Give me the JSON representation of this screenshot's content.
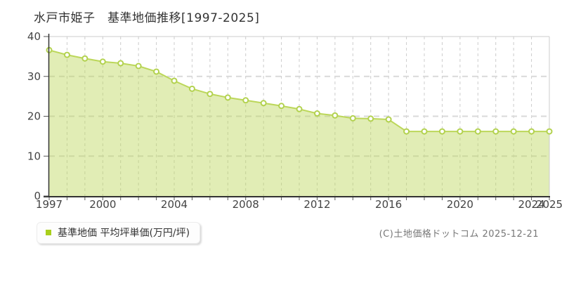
{
  "title": "水戸市姫子　基準地価推移[1997-2025]",
  "legend": {
    "label": "基準地価 平均坪単価(万円/坪)"
  },
  "copyright": "(C)土地価格ドットコム 2025-12-21",
  "chart_data": {
    "type": "area",
    "title": "水戸市姫子　基準地価推移[1997-2025]",
    "series_name": "基準地価 平均坪単価(万円/坪)",
    "ylabel": "万円/坪",
    "x": [
      1997,
      1998,
      1999,
      2000,
      2001,
      2002,
      2003,
      2004,
      2005,
      2006,
      2007,
      2008,
      2009,
      2010,
      2011,
      2012,
      2013,
      2014,
      2015,
      2016,
      2017,
      2018,
      2019,
      2020,
      2021,
      2022,
      2023,
      2024,
      2025
    ],
    "values": [
      36.6,
      35.4,
      34.5,
      33.7,
      33.3,
      32.6,
      31.2,
      28.9,
      26.9,
      25.6,
      24.7,
      24.0,
      23.3,
      22.6,
      21.8,
      20.7,
      20.2,
      19.5,
      19.4,
      19.2,
      16.2,
      16.2,
      16.2,
      16.2,
      16.2,
      16.2,
      16.2,
      16.2,
      16.2
    ],
    "xticks": [
      1997,
      2000,
      2004,
      2008,
      2012,
      2016,
      2020,
      2024,
      2025
    ],
    "yticks": [
      0,
      10,
      20,
      30,
      40
    ],
    "xlim": [
      1997,
      2025
    ],
    "ylim": [
      0,
      40
    ],
    "grid": true,
    "legend_position": "bottom-left",
    "colors": {
      "line": "#bcd75a",
      "fill": "#bcd75a",
      "fill_opacity": 0.45,
      "marker_fill": "#ffffff",
      "marker_stroke": "#b3d24f",
      "legend_marker": "#a9cf1c",
      "grid_vertical": "#cccccc",
      "grid_horizontal": "#d9d9d9",
      "plot_border": "#cccccc",
      "axis": "#333333",
      "tick": "#555555",
      "tick_label": "#444444",
      "title_color": "#333333",
      "copyright_color": "#777777"
    }
  }
}
